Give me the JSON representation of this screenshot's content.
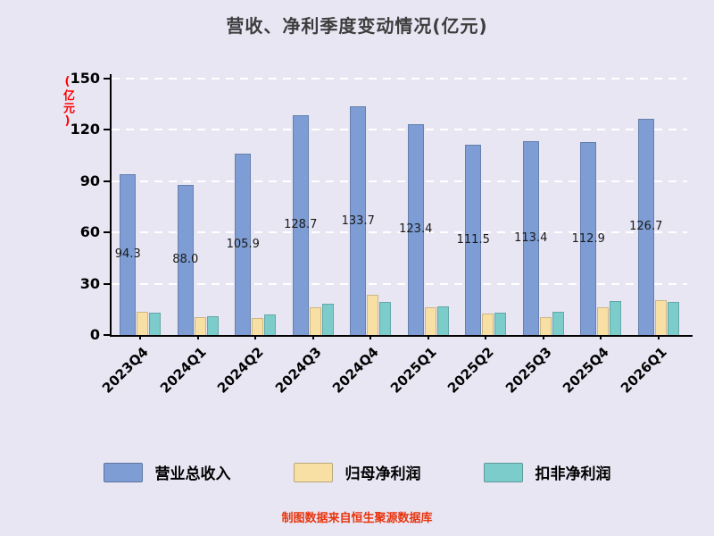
{
  "title": "营收、净利季度变动情况(亿元)",
  "footer": "制图数据来自恒生聚源数据库",
  "colors": {
    "background": "#E9E6F4",
    "gridline": "#FFFFFF",
    "axis": "#000000",
    "y_axis_title": "#FF0000",
    "footer_text": "#E8340C"
  },
  "chart_data": {
    "type": "bar",
    "title": "营收、净利季度变动情况(亿元)",
    "ylabel": "(亿元)",
    "xlabel": "",
    "categories": [
      "2023Q4",
      "2024Q1",
      "2024Q2",
      "2024Q3",
      "2024Q4",
      "2025Q1",
      "2025Q2",
      "2025Q3",
      "2025Q4",
      "2026Q1"
    ],
    "series": [
      {
        "name": "营业总收入",
        "color": "#7D9DD4",
        "values": [
          94.3,
          88.0,
          105.9,
          128.7,
          133.7,
          123.4,
          111.5,
          113.4,
          112.9,
          126.7
        ],
        "labels": [
          "94.3",
          "88.0",
          "105.9",
          "128.7",
          "133.7",
          "123.4",
          "111.5",
          "113.4",
          "112.9",
          "126.7"
        ]
      },
      {
        "name": "归母净利润",
        "color": "#F8DFA4",
        "values": [
          13.8,
          10.4,
          10.2,
          16.1,
          23.4,
          16.2,
          12.4,
          10.3,
          16.2,
          20.4
        ]
      },
      {
        "name": "扣非净利润",
        "color": "#7CCCCB",
        "values": [
          13.0,
          10.9,
          11.9,
          18.2,
          19.2,
          16.6,
          12.9,
          13.5,
          19.7,
          19.3
        ]
      }
    ],
    "ylim": [
      0,
      150
    ],
    "yticks": [
      0,
      30,
      60,
      90,
      120,
      150
    ],
    "grid": "horizontal-dashed-white",
    "legend_position": "bottom",
    "bar_value_labels": "series-0 labels, horizontal, clipped to bar width at mid-height"
  }
}
